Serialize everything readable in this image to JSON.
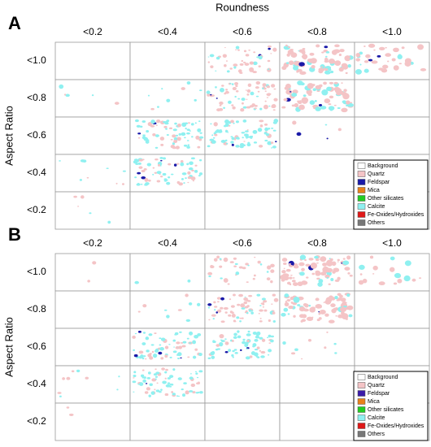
{
  "title": "Roundness",
  "panels": [
    {
      "label": "A",
      "row_title": "Aspect Ratio",
      "columns": [
        "<0.2",
        "<0.4",
        "<0.6",
        "<0.8",
        "<1.0"
      ],
      "rows": [
        "<1.0",
        "<0.8",
        "<0.6",
        "<0.4",
        "<0.2"
      ],
      "legend": [
        {
          "label": "Background",
          "color": "#ffffff"
        },
        {
          "label": "Quartz",
          "color": "#f4c4c6"
        },
        {
          "label": "Feldspar",
          "color": "#1a1aa8"
        },
        {
          "label": "Mica",
          "color": "#e8801a"
        },
        {
          "label": "Other silicates",
          "color": "#22cc22"
        },
        {
          "label": "Calcite",
          "color": "#8ff0f0"
        },
        {
          "label": "Fe-Oxides/Hydroxides",
          "color": "#e01818"
        },
        {
          "label": "Others",
          "color": "#777777"
        }
      ]
    },
    {
      "label": "B",
      "row_title": "Aspect Ratio",
      "columns": [
        "<0.2",
        "<0.4",
        "<0.6",
        "<0.8",
        "<1.0"
      ],
      "rows": [
        "<1.0",
        "<0.8",
        "<0.6",
        "<0.4",
        "<0.2"
      ],
      "legend": [
        {
          "label": "Background",
          "color": "#ffffff"
        },
        {
          "label": "Quartz",
          "color": "#f4c4c6"
        },
        {
          "label": "Feldspar",
          "color": "#3a1aa8"
        },
        {
          "label": "Mica",
          "color": "#e8801a"
        },
        {
          "label": "Other silicates",
          "color": "#22cc22"
        },
        {
          "label": "Calcite",
          "color": "#8ff0f0"
        },
        {
          "label": "Fe-Oxides/Hydroxides",
          "color": "#e01818"
        },
        {
          "label": "Others",
          "color": "#777777"
        }
      ]
    }
  ]
}
